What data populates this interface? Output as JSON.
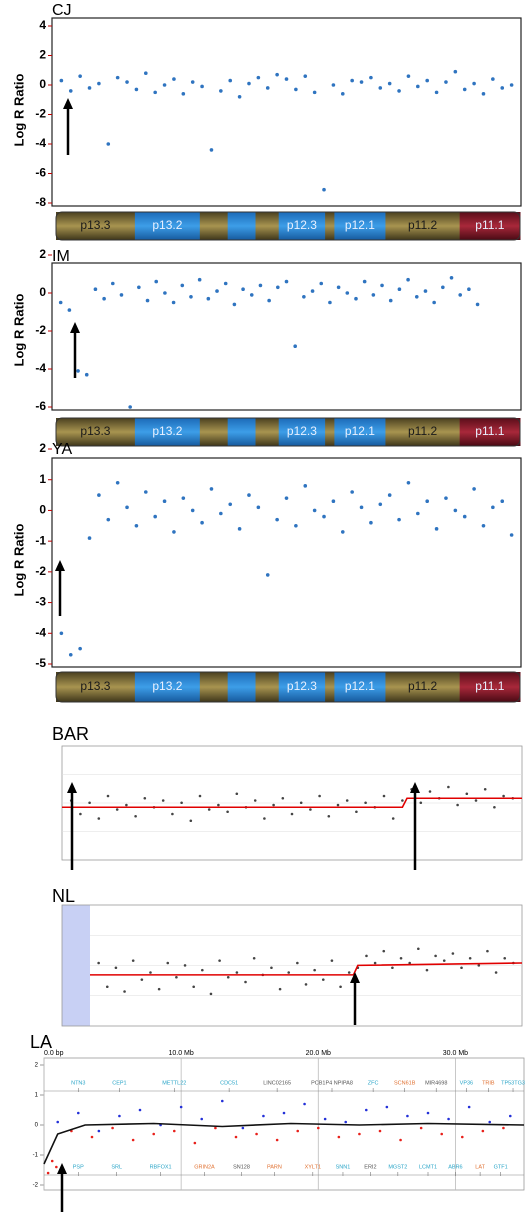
{
  "chart_data": [
    {
      "type": "scatter",
      "title": "CJ",
      "ylabel": "Log R Ratio",
      "color": "#2f74c0",
      "xlim": [
        0,
        100
      ],
      "ylim": [
        -8,
        4
      ],
      "yticks": [
        -8,
        -6,
        -4,
        -2,
        0,
        2,
        4
      ],
      "x": [
        2,
        4,
        6,
        8,
        10,
        12,
        14,
        16,
        18,
        20,
        22,
        24,
        26,
        28,
        30,
        32,
        34,
        36,
        38,
        40,
        42,
        44,
        46,
        48,
        50,
        52,
        54,
        56,
        58,
        60,
        62,
        64,
        66,
        68,
        70,
        72,
        74,
        76,
        78,
        80,
        82,
        84,
        86,
        88,
        90,
        92,
        94,
        96,
        98
      ],
      "values": [
        0.3,
        -0.4,
        0.6,
        -0.2,
        0.1,
        -4.0,
        0.5,
        0.2,
        -0.3,
        0.8,
        -0.5,
        0.0,
        0.4,
        -0.6,
        0.2,
        -0.1,
        -4.4,
        -0.4,
        0.3,
        -0.8,
        0.1,
        0.5,
        -0.2,
        0.7,
        0.4,
        -0.3,
        0.6,
        -0.5,
        -7.1,
        0.0,
        -0.6,
        0.3,
        0.2,
        0.5,
        -0.2,
        0.1,
        -0.4,
        0.6,
        -0.1,
        0.3,
        -0.5,
        0.2,
        0.9,
        -0.3,
        0.1,
        -0.6,
        0.4,
        -0.2,
        0.0
      ],
      "ideogram": [
        "p13.3",
        "p13.2",
        "p12.3",
        "p12.1",
        "p11.2",
        "p11.1"
      ]
    },
    {
      "type": "scatter",
      "title": "IM",
      "ylabel": "Log R Ratio",
      "color": "#2f74c0",
      "xlim": [
        0,
        108
      ],
      "ylim": [
        -6,
        2
      ],
      "yticks": [
        -6,
        -4,
        -2,
        0,
        2
      ],
      "x": [
        2,
        4,
        6,
        8,
        10,
        12,
        14,
        16,
        18,
        20,
        22,
        24,
        26,
        28,
        30,
        32,
        34,
        36,
        38,
        40,
        42,
        44,
        46,
        48,
        50,
        52,
        54,
        56,
        58,
        60,
        62,
        64,
        66,
        68,
        70,
        72,
        74,
        76,
        78,
        80,
        82,
        84,
        86,
        88,
        90,
        92,
        94,
        96,
        98
      ],
      "values": [
        -0.5,
        -0.9,
        -4.1,
        -4.3,
        0.2,
        -0.3,
        0.5,
        -0.1,
        -6.0,
        0.3,
        -0.4,
        0.6,
        0.0,
        -0.5,
        0.4,
        -0.2,
        0.7,
        -0.3,
        0.1,
        0.5,
        -0.6,
        0.2,
        -0.1,
        0.4,
        -0.4,
        0.3,
        0.6,
        -2.8,
        -0.2,
        0.1,
        0.5,
        -0.5,
        0.3,
        0.0,
        -0.3,
        0.6,
        -0.1,
        0.4,
        -0.4,
        0.2,
        0.7,
        -0.2,
        0.1,
        -0.5,
        0.3,
        0.8,
        -0.1,
        0.2,
        -0.6
      ],
      "ideogram": [
        "p13.3",
        "p13.2",
        "p12.3",
        "p12.1",
        "p11.2",
        "p11.1"
      ]
    },
    {
      "type": "scatter",
      "title": "YA",
      "ylabel": "Log R Ratio",
      "color": "#2f74c0",
      "xlim": [
        0,
        100
      ],
      "ylim": [
        -5,
        2
      ],
      "yticks": [
        -5,
        -4,
        -3,
        -2,
        -1,
        0,
        1,
        2
      ],
      "x": [
        2,
        4,
        6,
        8,
        10,
        12,
        14,
        16,
        18,
        20,
        22,
        24,
        26,
        28,
        30,
        32,
        34,
        36,
        38,
        40,
        42,
        44,
        46,
        48,
        50,
        52,
        54,
        56,
        58,
        60,
        62,
        64,
        66,
        68,
        70,
        72,
        74,
        76,
        78,
        80,
        82,
        84,
        86,
        88,
        90,
        92,
        94,
        96,
        98
      ],
      "values": [
        -4.0,
        -4.7,
        -4.5,
        -0.9,
        0.5,
        -0.3,
        0.9,
        0.1,
        -0.5,
        0.6,
        -0.2,
        0.3,
        -0.7,
        0.4,
        0.0,
        -0.4,
        0.7,
        -0.1,
        0.2,
        -0.6,
        0.5,
        0.1,
        -2.1,
        -0.3,
        0.4,
        -0.5,
        0.8,
        0.0,
        -0.2,
        0.3,
        -0.7,
        0.6,
        0.1,
        -0.4,
        0.2,
        0.5,
        -0.3,
        0.9,
        -0.1,
        0.3,
        -0.6,
        0.4,
        0.0,
        -0.2,
        0.7,
        -0.5,
        0.1,
        0.3,
        -0.8
      ],
      "ideogram": [
        "p13.3",
        "p13.2",
        "p12.3",
        "p12.1",
        "p11.2",
        "p11.1"
      ]
    },
    {
      "type": "scatter",
      "title": "BAR",
      "xlim": [
        0,
        100
      ],
      "ylim": [
        -1,
        1
      ],
      "series": [
        {
          "color": "#444444",
          "x": [
            2,
            4,
            6,
            8,
            10,
            12,
            14,
            16,
            18,
            20,
            22,
            24,
            26,
            28,
            30,
            32,
            34,
            36,
            38,
            40,
            42,
            44,
            46,
            48,
            50,
            52,
            54,
            56,
            58,
            60,
            62,
            64,
            66,
            68,
            70,
            72,
            74,
            76,
            78,
            80,
            82,
            84,
            86,
            88,
            90,
            92,
            94,
            96,
            98
          ],
          "values": [
            0.1,
            -0.2,
            0.05,
            -0.3,
            0.2,
            -0.1,
            0.0,
            -0.25,
            0.15,
            -0.05,
            0.1,
            -0.2,
            0.05,
            -0.35,
            0.2,
            -0.1,
            0.0,
            -0.15,
            0.25,
            -0.05,
            0.1,
            -0.3,
            0.0,
            0.15,
            -0.2,
            0.05,
            -0.1,
            0.2,
            -0.25,
            0.0,
            0.1,
            -0.15,
            0.05,
            -0.05,
            0.2,
            -0.3,
            0.1,
            0.35,
            0.05,
            0.3,
            0.15,
            0.4,
            0.0,
            0.25,
            0.1,
            0.35,
            -0.05,
            0.2,
            0.15
          ]
        },
        {
          "mode": "line",
          "color": "#e00000",
          "x": [
            0,
            74,
            75,
            100
          ],
          "values": [
            -0.05,
            -0.05,
            0.15,
            0.15
          ]
        }
      ]
    },
    {
      "type": "scatter",
      "title": "NL",
      "xlim": [
        0,
        100
      ],
      "ylim": [
        -1,
        1
      ],
      "series": [
        {
          "color": "#444444",
          "x": [
            2,
            4,
            6,
            8,
            10,
            12,
            14,
            16,
            18,
            20,
            22,
            24,
            26,
            28,
            30,
            32,
            34,
            36,
            38,
            40,
            42,
            44,
            46,
            48,
            50,
            52,
            54,
            56,
            58,
            60,
            62,
            64,
            66,
            68,
            70,
            72,
            74,
            76,
            78,
            80,
            82,
            84,
            86,
            88,
            90,
            92,
            94,
            96,
            98
          ],
          "values": [
            0.2,
            -0.3,
            0.1,
            -0.4,
            0.25,
            -0.15,
            0.0,
            -0.35,
            0.2,
            -0.1,
            0.15,
            -0.3,
            0.05,
            -0.45,
            0.25,
            -0.1,
            0.0,
            -0.2,
            0.3,
            -0.05,
            0.1,
            -0.35,
            0.0,
            0.2,
            -0.25,
            0.05,
            -0.15,
            0.25,
            -0.3,
            0.0,
            0.1,
            0.35,
            0.2,
            0.45,
            0.1,
            0.3,
            0.2,
            0.5,
            0.05,
            0.35,
            0.25,
            0.4,
            0.1,
            0.3,
            0.15,
            0.45,
            0.0,
            0.3,
            0.2
          ]
        },
        {
          "mode": "line",
          "color": "#e00000",
          "x": [
            0,
            61,
            62,
            100
          ],
          "values": [
            -0.05,
            -0.05,
            0.15,
            0.2
          ]
        }
      ]
    },
    {
      "type": "scatter",
      "title": "LA",
      "xlim": [
        0,
        35
      ],
      "ylim": [
        -2,
        2
      ],
      "yticks": [
        -2,
        -1,
        0,
        1,
        2
      ],
      "xticks": [
        {
          "value": 0,
          "label": "0.0 bp"
        },
        {
          "value": 10,
          "label": "10.0 Mb"
        },
        {
          "value": 20,
          "label": "20.0 Mb"
        },
        {
          "value": 30,
          "label": "30.0 Mb"
        }
      ],
      "series": [
        {
          "color": "#2330d8",
          "x": [
            1,
            2.5,
            4,
            5.5,
            7,
            8.5,
            10,
            11.5,
            13,
            14.5,
            16,
            17.5,
            19,
            20.5,
            22,
            23.5,
            25,
            26.5,
            28,
            29.5,
            31,
            32.5,
            34
          ],
          "values": [
            0.1,
            0.4,
            -0.2,
            0.3,
            0.5,
            0.0,
            0.6,
            0.2,
            0.8,
            -0.1,
            0.3,
            0.4,
            0.7,
            0.2,
            0.1,
            0.5,
            0.6,
            0.3,
            0.4,
            0.2,
            0.6,
            0.1,
            0.3
          ]
        },
        {
          "color": "#e8201a",
          "x": [
            0.3,
            0.6,
            0.9,
            2,
            3.5,
            5,
            6.5,
            8,
            9.5,
            11,
            12.5,
            14,
            15.5,
            17,
            18.5,
            20,
            21.5,
            23,
            24.5,
            26,
            27.5,
            29,
            30.5,
            32,
            33.5
          ],
          "values": [
            -1.6,
            -1.2,
            -1.4,
            -0.2,
            -0.4,
            -0.1,
            -0.5,
            -0.3,
            -0.2,
            -0.6,
            -0.1,
            -0.4,
            -0.3,
            -0.5,
            -0.2,
            -0.1,
            -0.4,
            -0.3,
            -0.2,
            -0.5,
            -0.1,
            -0.3,
            -0.4,
            -0.2,
            -0.1
          ]
        },
        {
          "mode": "line",
          "color": "#111111",
          "x": [
            0,
            1,
            3,
            8,
            13,
            18,
            23,
            28,
            35
          ],
          "values": [
            -1.3,
            -0.3,
            0,
            0.05,
            -0.05,
            0.05,
            0,
            0.05,
            0
          ]
        }
      ],
      "genes": [
        {
          "label": "NTN3",
          "x": 2.5,
          "row": 1,
          "color": "#2aa5c8"
        },
        {
          "label": "CEP1",
          "x": 5.5,
          "row": 1,
          "color": "#2aa5c8"
        },
        {
          "label": "METTL22",
          "x": 9.5,
          "row": 1,
          "color": "#2aa5c8"
        },
        {
          "label": "CDC51",
          "x": 13.5,
          "row": 1,
          "color": "#2aa5c8"
        },
        {
          "label": "LINC02165",
          "x": 17,
          "row": 1,
          "color": "#555555"
        },
        {
          "label": "PCB1P4 NPIPA8",
          "x": 21,
          "row": 1,
          "color": "#555555"
        },
        {
          "label": "ZFC",
          "x": 24,
          "row": 1,
          "color": "#2aa5c8"
        },
        {
          "label": "SCN61B",
          "x": 26.3,
          "row": 1,
          "color": "#e07030"
        },
        {
          "label": "MIR4698",
          "x": 28.6,
          "row": 1,
          "color": "#555555"
        },
        {
          "label": "VP36",
          "x": 30.8,
          "row": 1,
          "color": "#2aa5c8"
        },
        {
          "label": "TRIB",
          "x": 32.4,
          "row": 1,
          "color": "#e07030"
        },
        {
          "label": "TP53TG3",
          "x": 34.2,
          "row": 1,
          "color": "#2aa5c8"
        },
        {
          "label": "PSP",
          "x": 2.5,
          "row": -1,
          "color": "#2aa5c8"
        },
        {
          "label": "SRL",
          "x": 5.3,
          "row": -1,
          "color": "#2aa5c8"
        },
        {
          "label": "RBFOX1",
          "x": 8.5,
          "row": -1,
          "color": "#2aa5c8"
        },
        {
          "label": "GRIN2A",
          "x": 11.7,
          "row": -1,
          "color": "#e07030"
        },
        {
          "label": "SN128",
          "x": 14.4,
          "row": -1,
          "color": "#555555"
        },
        {
          "label": "PARN",
          "x": 16.8,
          "row": -1,
          "color": "#e07030"
        },
        {
          "label": "XYLT1",
          "x": 19.6,
          "row": -1,
          "color": "#e07030"
        },
        {
          "label": "SNN1",
          "x": 21.8,
          "row": -1,
          "color": "#2aa5c8"
        },
        {
          "label": "ERI2",
          "x": 23.8,
          "row": -1,
          "color": "#555555"
        },
        {
          "label": "MGST2",
          "x": 25.8,
          "row": -1,
          "color": "#2aa5c8"
        },
        {
          "label": "LCMT1",
          "x": 28,
          "row": -1,
          "color": "#2aa5c8"
        },
        {
          "label": "ABR6",
          "x": 30,
          "row": -1,
          "color": "#2aa5c8"
        },
        {
          "label": "LAT",
          "x": 31.8,
          "row": -1,
          "color": "#e07030"
        },
        {
          "label": "GTF1",
          "x": 33.3,
          "row": -1,
          "color": "#2aa5c8"
        }
      ]
    }
  ]
}
